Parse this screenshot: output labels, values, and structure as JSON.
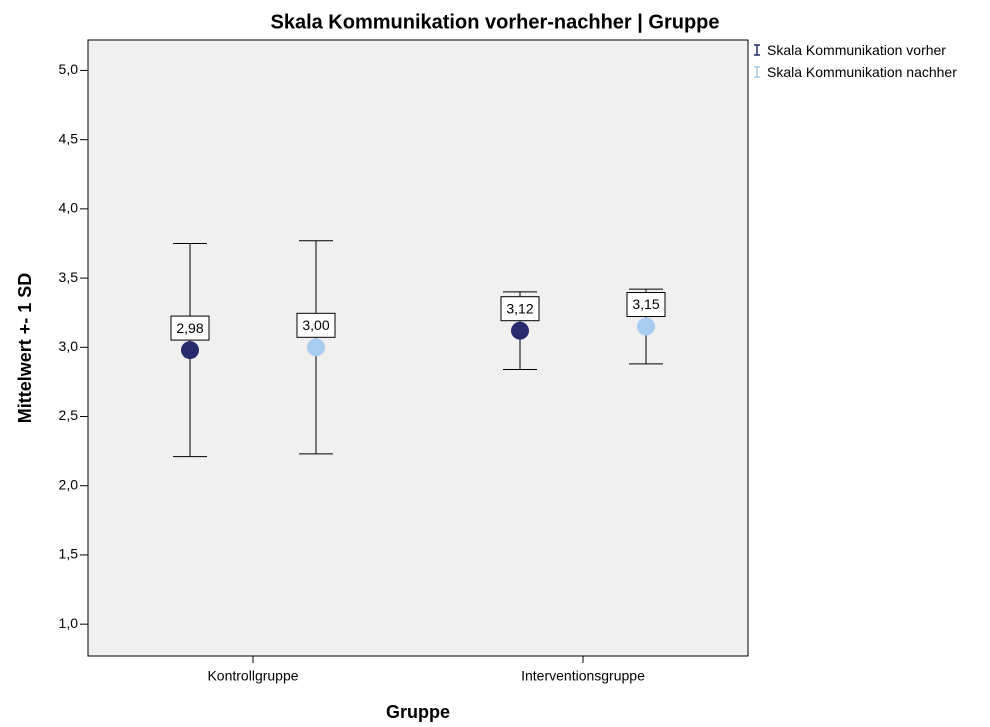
{
  "chart_data": {
    "type": "errorbar",
    "title": "Skala Kommunikation vorher-nachher | Gruppe",
    "xlabel": "Gruppe",
    "ylabel": "Mittelwert +- 1 SD",
    "categories": [
      "Kontrollgruppe",
      "Interventionsgruppe"
    ],
    "series": [
      {
        "name": "Skala Kommunikation vorher",
        "color": "#262b6e",
        "values": [
          2.98,
          3.12
        ],
        "errors": [
          0.77,
          0.28
        ],
        "value_labels": [
          "2,98",
          "3,12"
        ]
      },
      {
        "name": "Skala Kommunikation nachher",
        "color": "#a9cdf0",
        "values": [
          3.0,
          3.15
        ],
        "errors": [
          0.77,
          0.27
        ],
        "value_labels": [
          "3,00",
          "3,15"
        ]
      }
    ],
    "ylim": [
      0.77,
      5.22
    ],
    "yticks": [
      {
        "value": 1,
        "label": "1,0"
      },
      {
        "value": 1.5,
        "label": "1,5"
      },
      {
        "value": 2,
        "label": "2,0"
      },
      {
        "value": 2.5,
        "label": "2,5"
      },
      {
        "value": 3,
        "label": "3,0"
      },
      {
        "value": 3.5,
        "label": "3,5"
      },
      {
        "value": 4,
        "label": "4,0"
      },
      {
        "value": 4.5,
        "label": "4,5"
      },
      {
        "value": 5,
        "label": "5,0"
      }
    ],
    "legend": "right"
  }
}
